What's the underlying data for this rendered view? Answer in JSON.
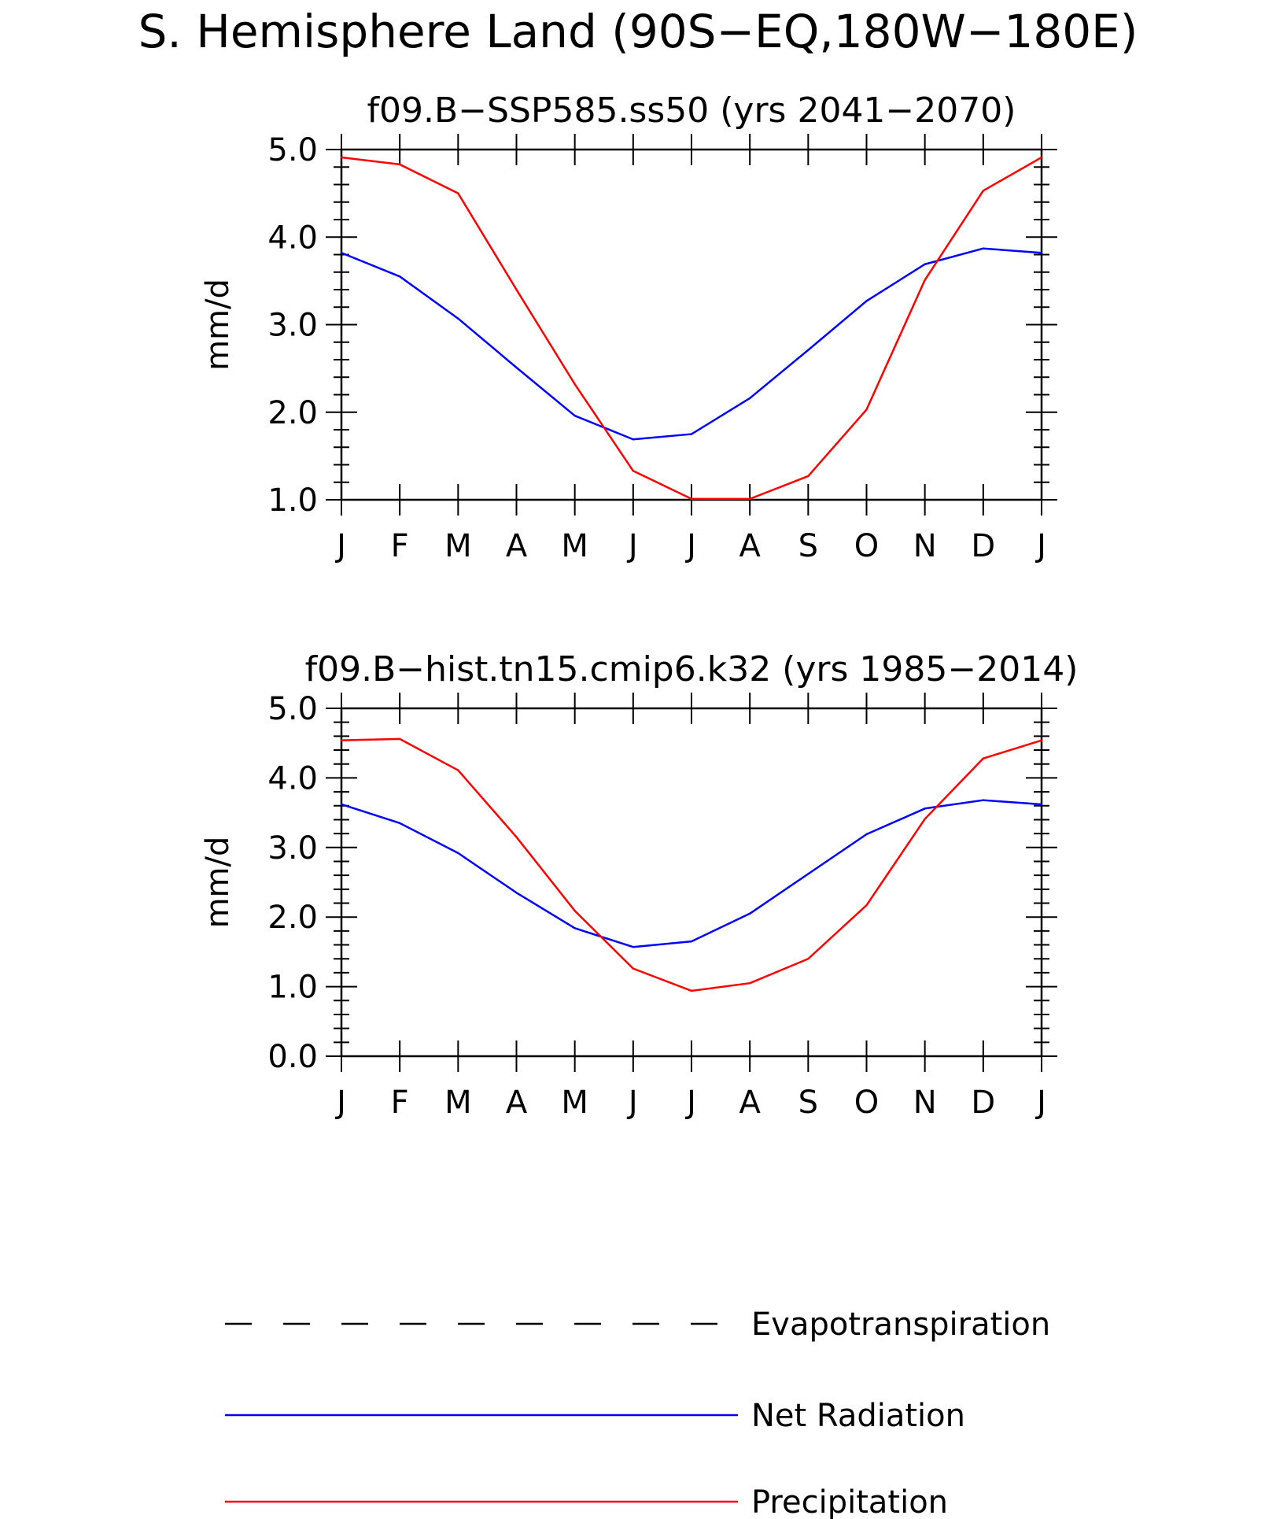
{
  "figure": {
    "title": "S. Hemisphere Land (90S−EQ,180W−180E)"
  },
  "legend": {
    "items": [
      {
        "label": "Evapotranspiration",
        "color": "#000000",
        "style": "dashed"
      },
      {
        "label": "Net Radiation",
        "color": "#0000ff",
        "style": "solid"
      },
      {
        "label": "Precipitation",
        "color": "#ff0000",
        "style": "solid"
      }
    ]
  },
  "chart_data": [
    {
      "type": "line",
      "title": "f09.B−SSP585.ss50 (yrs 2041−2070)",
      "xlabel": "",
      "ylabel": "mm/d",
      "ylim": [
        1.0,
        5.0
      ],
      "yticks": [
        "1.0",
        "2.0",
        "3.0",
        "4.0",
        "5.0"
      ],
      "categories": [
        "J",
        "F",
        "M",
        "A",
        "M",
        "J",
        "J",
        "A",
        "S",
        "O",
        "N",
        "D",
        "J"
      ],
      "grid": false,
      "legend_position": "bottom",
      "series": [
        {
          "name": "Net Radiation",
          "color": "#0000ff",
          "values": [
            3.82,
            3.55,
            3.07,
            2.51,
            1.96,
            1.69,
            1.75,
            2.16,
            2.71,
            3.27,
            3.69,
            3.87,
            3.82
          ]
        },
        {
          "name": "Precipitation",
          "color": "#ff0000",
          "values": [
            4.91,
            4.83,
            4.5,
            3.4,
            2.32,
            1.33,
            1.01,
            1.01,
            1.27,
            2.03,
            3.51,
            4.53,
            4.91
          ]
        }
      ]
    },
    {
      "type": "line",
      "title": "f09.B−hist.tn15.cmip6.k32 (yrs 1985−2014)",
      "xlabel": "",
      "ylabel": "mm/d",
      "ylim": [
        0.0,
        5.0
      ],
      "yticks": [
        "0.0",
        "1.0",
        "2.0",
        "3.0",
        "4.0",
        "5.0"
      ],
      "categories": [
        "J",
        "F",
        "M",
        "A",
        "M",
        "J",
        "J",
        "A",
        "S",
        "O",
        "N",
        "D",
        "J"
      ],
      "grid": false,
      "legend_position": "bottom",
      "series": [
        {
          "name": "Net Radiation",
          "color": "#0000ff",
          "values": [
            3.62,
            3.35,
            2.92,
            2.35,
            1.84,
            1.57,
            1.65,
            2.05,
            2.62,
            3.19,
            3.56,
            3.68,
            3.62
          ]
        },
        {
          "name": "Precipitation",
          "color": "#ff0000",
          "values": [
            4.54,
            4.56,
            4.11,
            3.15,
            2.09,
            1.26,
            0.94,
            1.05,
            1.4,
            2.17,
            3.41,
            4.28,
            4.54
          ]
        }
      ]
    }
  ]
}
